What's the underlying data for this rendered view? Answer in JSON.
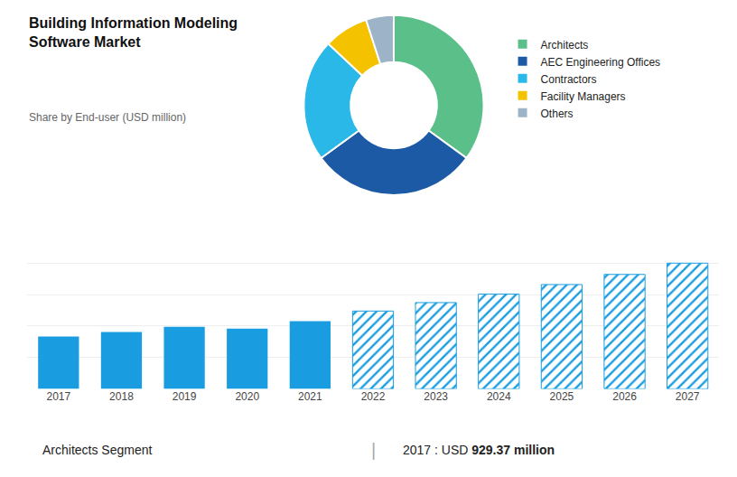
{
  "chart_data": [
    {
      "type": "pie",
      "title": "Building Information Modeling\nSoftware Market",
      "subtitle": "Share by End-user (USD million)",
      "categories": [
        "Architects",
        "AEC Engineering Offices",
        "Contractors",
        "Facility Managers",
        "Others"
      ],
      "values": [
        35,
        30,
        22,
        8,
        5
      ],
      "colors": [
        "#5bbf8a",
        "#1c5aa6",
        "#29b8e8",
        "#f5c200",
        "#9db3c8"
      ],
      "legend": "right"
    },
    {
      "type": "bar",
      "categories": [
        "2017",
        "2018",
        "2019",
        "2020",
        "2021",
        "2022",
        "2023",
        "2024",
        "2025",
        "2026",
        "2027"
      ],
      "series": [
        {
          "color": "#1a9de0",
          "marker": "solid",
          "values": [
            929,
            1010,
            1100,
            1070,
            1200,
            null,
            null,
            null,
            null,
            null,
            null
          ]
        },
        {
          "color": "#1a9de0",
          "marker": "hatched",
          "values": [
            null,
            null,
            null,
            null,
            null,
            1380,
            1530,
            1680,
            1850,
            2030,
            2230
          ]
        }
      ],
      "ylim": [
        0,
        2787.5
      ],
      "yticks": [
        0,
        557.5,
        1115,
        1672.5,
        2230,
        2787.5
      ],
      "grid": true,
      "tick_labels": "x",
      "annotations": [
        "Architects Segment",
        "|",
        "2017 : USD ",
        "929.37 million"
      ]
    }
  ]
}
